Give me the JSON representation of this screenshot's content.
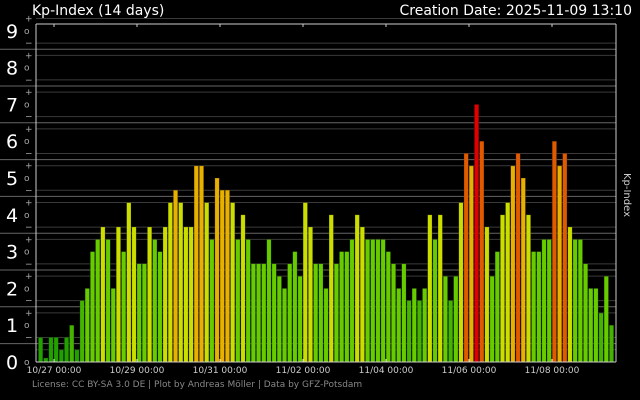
{
  "header": {
    "title": "Kp-Index (14 days)",
    "creation_date": "Creation Date: 2025-11-09 13:10"
  },
  "footer": "License: CC BY-SA 3.0 DE | Plot by Andreas Möller | Data by GFZ-Potsdam",
  "chart_data": {
    "type": "bar",
    "title": "Kp-Index (14 days)",
    "ylabel": "Kp-Index",
    "xlabel": "",
    "ylim": [
      0,
      9
    ],
    "x_start": "10/26 15:00",
    "interval_hours": 3,
    "x_ticks": [
      "10/27 00:00",
      "10/29 00:00",
      "10/31 00:00",
      "11/02 00:00",
      "11/04 00:00",
      "11/06 00:00",
      "11/08 00:00"
    ],
    "y_ticks": [
      "0",
      "1",
      "2",
      "3",
      "4",
      "5",
      "6",
      "7",
      "8",
      "9"
    ],
    "y_minor_labels": [
      "+",
      "o",
      "−"
    ],
    "grid": true,
    "values": [
      0.67,
      0,
      0.67,
      0.67,
      0.33,
      0.67,
      1,
      0.33,
      1.67,
      2,
      3,
      3.33,
      3.67,
      3.33,
      2,
      3.67,
      3,
      4.33,
      3.67,
      2.67,
      2.67,
      3.67,
      3.33,
      3,
      3.67,
      4.33,
      4.67,
      4.33,
      3.67,
      3.67,
      5.33,
      5.33,
      4.33,
      3.33,
      5,
      4.67,
      4.67,
      4.33,
      3.33,
      4,
      3.33,
      2.67,
      2.67,
      2.67,
      3.33,
      2.67,
      2.33,
      2,
      2.67,
      3,
      2.33,
      4.33,
      3.67,
      2.67,
      2.67,
      2,
      4,
      2.67,
      3,
      3,
      3.33,
      4,
      3.67,
      3.33,
      3.33,
      3.33,
      3.33,
      3,
      2.67,
      2,
      2.67,
      1.67,
      2,
      1.67,
      2,
      4,
      3.33,
      4,
      2.33,
      1.67,
      2.33,
      4.33,
      5.67,
      5.33,
      7,
      6,
      3.67,
      2.33,
      3,
      4,
      4.33,
      5.33,
      5.67,
      5,
      4,
      3,
      3,
      3.33,
      3.33,
      6,
      5.33,
      5.67,
      3.67,
      3.33,
      3.33,
      2.67,
      2,
      2,
      1.33,
      2.33,
      1
    ],
    "colors": {
      "k0": "#22a000",
      "k1": "#44b400",
      "k2": "#66cc00",
      "k3": "#ccdd00",
      "k4": "#e8b000",
      "k5": "#e05a00",
      "k6": "#e00000"
    }
  }
}
